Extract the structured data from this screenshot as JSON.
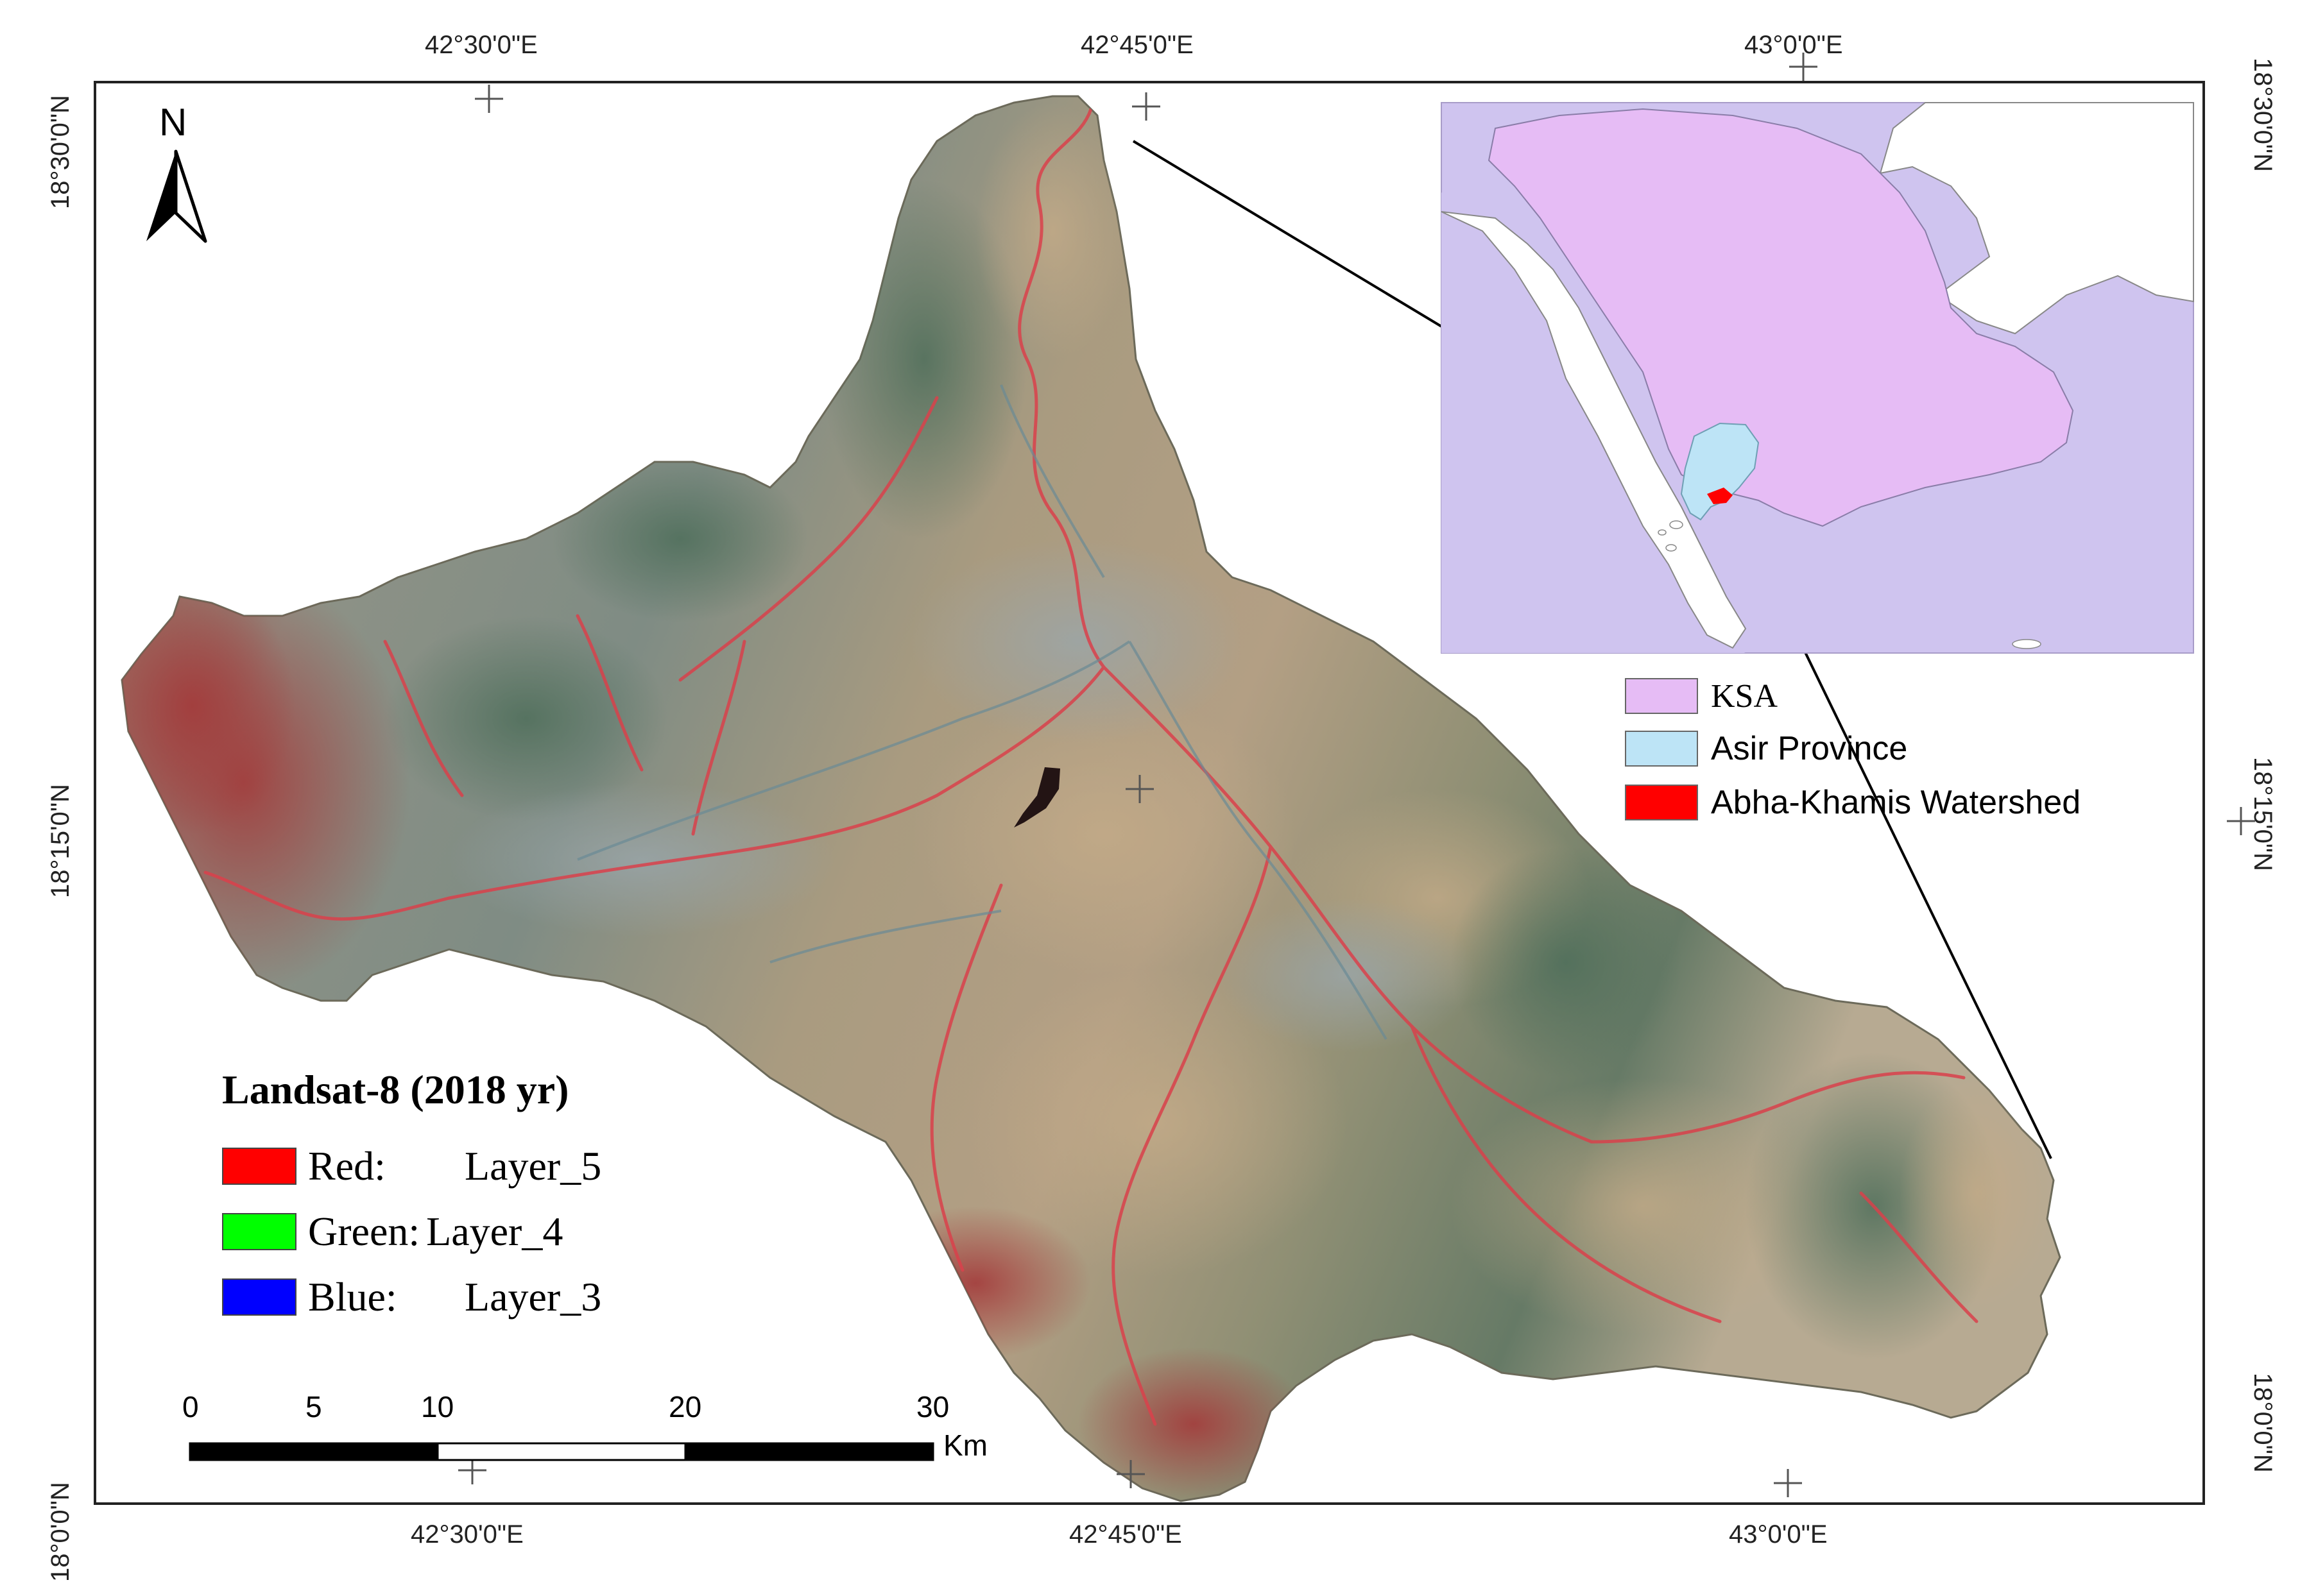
{
  "north_arrow": {
    "label": "N"
  },
  "graticule": {
    "top_longitudes": [
      "42°30'0\"E",
      "42°45'0\"E",
      "43°0'0\"E"
    ],
    "bottom_longitudes": [
      "42°30'0\"E",
      "42°45'0\"E",
      "43°0'0\"E"
    ],
    "left_latitudes": [
      "18°30'0\"N",
      "18°15'0\"N",
      "18°0'0\"N"
    ],
    "right_latitudes": [
      "18°30'0\"N",
      "18°15'0\"N",
      "18°0'0\"N"
    ]
  },
  "band_legend": {
    "title": "Landsat-8 (2018 yr)",
    "items": [
      {
        "label": "Red:",
        "layer": "Layer_5",
        "color": "#ff0000"
      },
      {
        "label": "Green:",
        "layer": "Layer_4",
        "color": "#00ff00"
      },
      {
        "label": "Blue:",
        "layer": "Layer_3",
        "color": "#0000ff"
      }
    ]
  },
  "inset_legend": {
    "items": [
      {
        "label": "KSA",
        "color": "#e6bcf5"
      },
      {
        "label": "Asir Province",
        "color": "#bde4f6"
      },
      {
        "label": "Abha-Khamis Watershed",
        "color": "#ff0000"
      }
    ]
  },
  "scale_bar": {
    "ticks": [
      "0",
      "5",
      "10",
      "20",
      "30"
    ],
    "unit": "Km"
  },
  "colors": {
    "inset_background": "#cfc4ef",
    "ksa_fill": "#e6bcf5",
    "asir_fill": "#bde4f6",
    "watershed_fill": "#ff0000",
    "frame": "#222222"
  }
}
